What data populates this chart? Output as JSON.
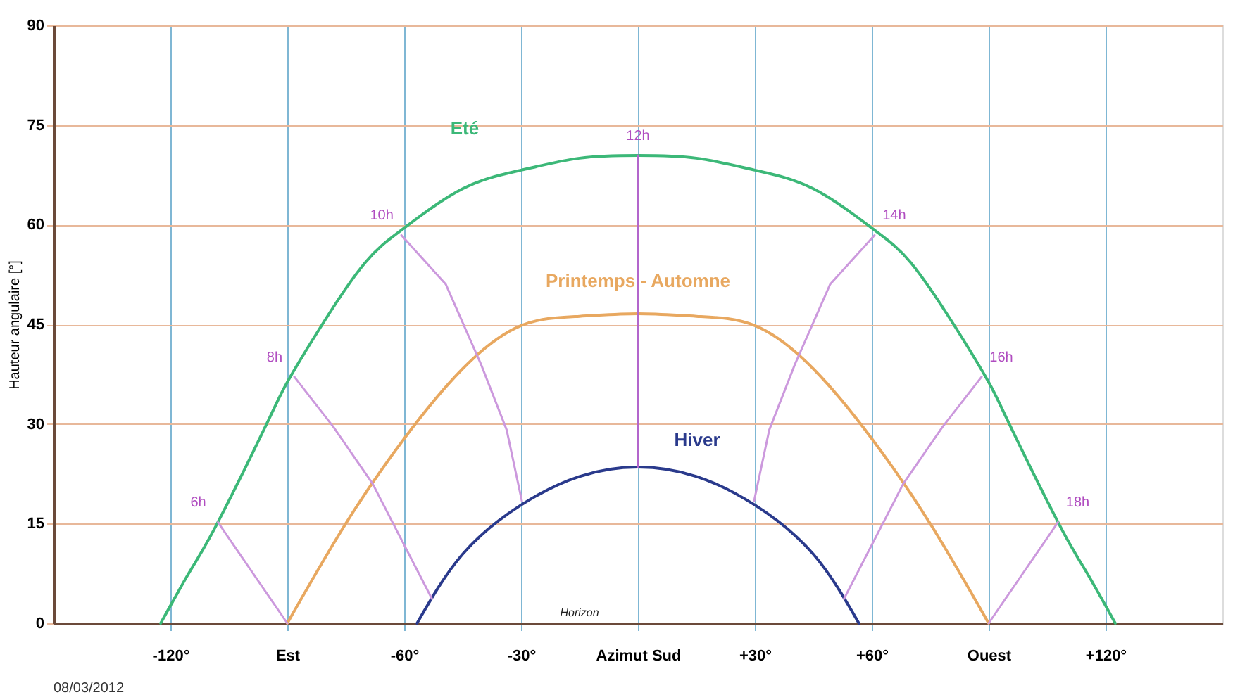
{
  "chart_data": {
    "type": "line",
    "ylabel": "Hauteur angulaire [°]",
    "xlim": [
      -150,
      150
    ],
    "ylim": [
      0,
      90
    ],
    "xticks": [
      {
        "value": -120,
        "label": "-120°"
      },
      {
        "value": -90,
        "label": "Est"
      },
      {
        "value": -60,
        "label": "-60°"
      },
      {
        "value": -30,
        "label": "-30°"
      },
      {
        "value": 0,
        "label": "Azimut Sud"
      },
      {
        "value": 30,
        "label": "+30°"
      },
      {
        "value": 60,
        "label": "+60°"
      },
      {
        "value": 90,
        "label": "Ouest"
      },
      {
        "value": 120,
        "label": "+120°"
      }
    ],
    "yticks": [
      0,
      15,
      30,
      45,
      60,
      75,
      90
    ],
    "grid": true,
    "marker": "none",
    "line_style": "solid",
    "series": [
      {
        "name": "Eté",
        "color": "#3cb878",
        "x": [
          -122.5,
          -115,
          -108,
          -95.3,
          -90,
          -81,
          -70,
          -60,
          -45,
          -30,
          -15,
          0,
          15,
          30,
          45,
          60,
          70,
          81,
          90,
          95.3,
          108,
          115,
          122.5
        ],
        "values": [
          0,
          7.8,
          15,
          30,
          36.3,
          45,
          54.3,
          59.5,
          65.4,
          68.2,
          70,
          70.4,
          70,
          68.2,
          65.4,
          59.5,
          54.3,
          45,
          36.3,
          30,
          15,
          7.8,
          0
        ]
      },
      {
        "name": "Printemps - Automne",
        "color": "#e8a860",
        "x": [
          -90,
          -75,
          -60,
          -45,
          -30,
          -15,
          0,
          15,
          30,
          45,
          60,
          75,
          90
        ],
        "values": [
          0,
          15,
          27.8,
          38.3,
          44.8,
          46.2,
          46.6,
          46.2,
          44.8,
          38.3,
          27.8,
          15,
          0
        ]
      },
      {
        "name": "Hiver",
        "color": "#2a3a8c",
        "x": [
          -56.7,
          -45,
          -30,
          -15,
          0,
          15,
          30,
          45,
          56.7
        ],
        "values": [
          0,
          10.4,
          17.8,
          22.1,
          23.5,
          22.1,
          17.8,
          10.4,
          0
        ]
      },
      {
        "color": "#cc99dd",
        "x": [
          -107.8,
          -90
        ],
        "values": [
          15.2,
          0
        ]
      },
      {
        "color": "#cc99dd",
        "x": [
          -88.2,
          -78.1,
          -68.1,
          -52.9
        ],
        "values": [
          37.1,
          29.5,
          21,
          3.7
        ]
      },
      {
        "color": "#cc99dd",
        "x": [
          -60.7,
          -49.3,
          -40.3,
          -33.7,
          -29.8
        ],
        "values": [
          58.4,
          51,
          39,
          29.1,
          18.4
        ]
      },
      {
        "color": "#b366cc",
        "x": [
          0,
          0
        ],
        "values": [
          70.4,
          23.5
        ]
      },
      {
        "color": "#cc99dd",
        "x": [
          60.7,
          49.3,
          40.3,
          33.7,
          29.8
        ],
        "values": [
          58.4,
          51,
          39,
          29.1,
          18.4
        ]
      },
      {
        "color": "#cc99dd",
        "x": [
          88.2,
          78.1,
          68.1,
          52.9
        ],
        "values": [
          37.1,
          29.5,
          21,
          3.7
        ]
      },
      {
        "color": "#cc99dd",
        "x": [
          107.8,
          90
        ],
        "values": [
          15.2,
          0
        ]
      }
    ],
    "annotations": [
      {
        "text": "6h",
        "x": -107.8,
        "y": 15.2
      },
      {
        "text": "8h",
        "x": -88.2,
        "y": 37.1
      },
      {
        "text": "10h",
        "x": -60.7,
        "y": 58.4
      },
      {
        "text": "12h",
        "x": 0,
        "y": 70.4
      },
      {
        "text": "14h",
        "x": 60.7,
        "y": 58.4
      },
      {
        "text": "16h",
        "x": 88.2,
        "y": 37.1
      },
      {
        "text": "18h",
        "x": 107.8,
        "y": 15.2
      },
      "Horizon",
      "08/03/2012"
    ]
  }
}
